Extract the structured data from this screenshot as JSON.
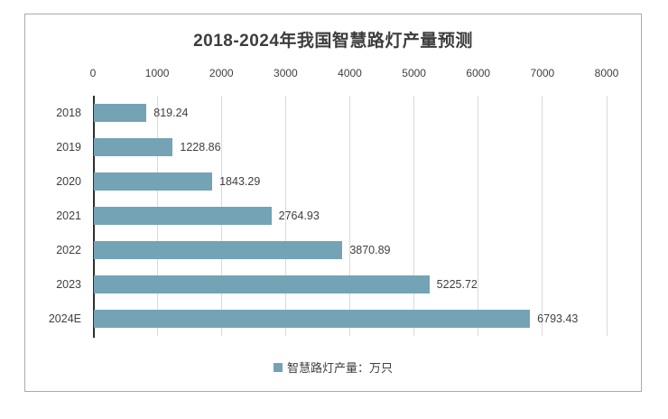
{
  "chart_data": {
    "type": "bar",
    "orientation": "horizontal",
    "title": "2018-2024年我国智慧路灯产量预测",
    "categories": [
      "2018",
      "2019",
      "2020",
      "2021",
      "2022",
      "2023",
      "2024E"
    ],
    "series": [
      {
        "name": "智慧路灯产量：万只",
        "values": [
          819.24,
          1228.86,
          1843.29,
          2764.93,
          3870.89,
          5225.72,
          6793.43
        ],
        "value_labels": [
          "819.24",
          "1228.86",
          "1843.29",
          "2764.93",
          "3870.89",
          "5225.72",
          "6793.43"
        ]
      }
    ],
    "x_axis": {
      "position": "top",
      "range": [
        0,
        8000
      ],
      "ticks": [
        0,
        1000,
        2000,
        3000,
        4000,
        5000,
        6000,
        7000,
        8000
      ],
      "tick_labels": [
        "0",
        "1000",
        "2000",
        "3000",
        "4000",
        "5000",
        "6000",
        "7000",
        "8000"
      ],
      "grid": true
    },
    "legend": {
      "label": "智慧路灯产量：万只",
      "position": "bottom"
    },
    "colors": {
      "bar": "#74a3b5",
      "grid": "#d9d9d9",
      "axis_line": "#2e2e2e",
      "text": "#3f3f3f",
      "panel_border": "#ababab"
    }
  }
}
